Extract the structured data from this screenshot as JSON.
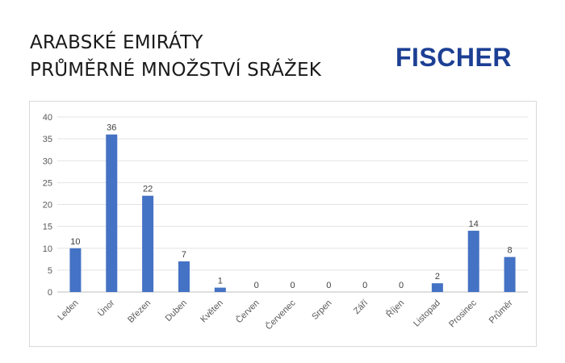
{
  "header": {
    "title_line1": "ARABSKÉ EMIRÁTY",
    "title_line2": "PRŮMĚRNÉ MNOŽSTVÍ SRÁŽEK",
    "logo_text": "FISCHER",
    "logo_color": "#1c3f94"
  },
  "chart_data": {
    "type": "bar",
    "categories": [
      "Leden",
      "Únor",
      "Březen",
      "Duben",
      "Květen",
      "Červen",
      "Červenec",
      "Srpen",
      "Září",
      "Říjen",
      "Listopad",
      "Prosinec",
      "Průměr"
    ],
    "values": [
      10,
      36,
      22,
      7,
      1,
      0,
      0,
      0,
      0,
      0,
      2,
      14,
      8
    ],
    "data_labels": [
      "10",
      "36",
      "22",
      "7",
      "1",
      "0",
      "0",
      "0",
      "0",
      "0",
      "2",
      "14",
      "8"
    ],
    "ylim": [
      0,
      40
    ],
    "yticks": [
      0,
      5,
      10,
      15,
      20,
      25,
      30,
      35,
      40
    ],
    "grid": true,
    "bar_color": "#4472c4",
    "xlabel": "",
    "ylabel": ""
  }
}
